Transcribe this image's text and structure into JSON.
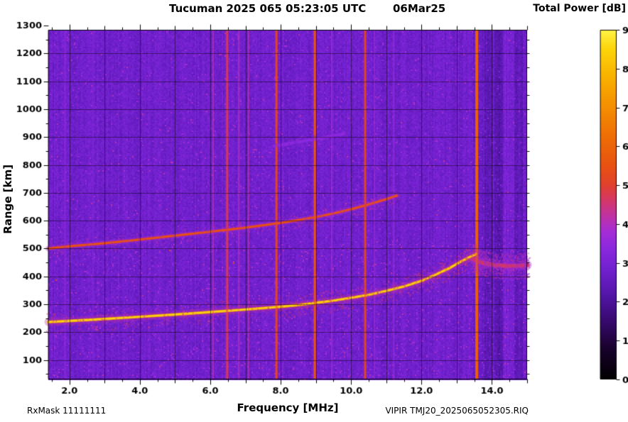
{
  "chart_data": {
    "type": "heatmap",
    "title": "Tucuman 2025 065 05:23:05 UTC",
    "date_label": "06Mar25",
    "colorbar_label": "Total Power [dB]",
    "xlabel": "Frequency [MHz]",
    "ylabel": "Range [km]",
    "footer_left": "RxMask 11111111",
    "footer_right": "VIPIR  TMJ20_2025065052305.RIQ",
    "x_axis": {
      "min": 1.4,
      "max": 15.0,
      "tick_values": [
        2,
        4,
        6,
        8,
        10,
        12,
        14
      ],
      "tick_labels": [
        "2.0",
        "4.0",
        "6.0",
        "8.0",
        "10.0",
        "12.0",
        "14.0"
      ],
      "minor_step": 0.5,
      "grid_step": 1.0
    },
    "y_axis": {
      "min": 30,
      "max": 1285,
      "tick_values": [
        100,
        200,
        300,
        400,
        500,
        600,
        700,
        800,
        900,
        1000,
        1100,
        1200,
        1300
      ],
      "tick_labels": [
        "100",
        "200",
        "300",
        "400",
        "500",
        "600",
        "700",
        "800",
        "900",
        "1000",
        "1100",
        "1200",
        "1300"
      ],
      "minor_step": 50,
      "grid_step": 100
    },
    "colorbar": {
      "min": 0,
      "max": 90,
      "tick_values": [
        0,
        10,
        20,
        30,
        40,
        50,
        60,
        70,
        80,
        90
      ],
      "tick_labels": [
        "0",
        "10",
        "20",
        "30",
        "40",
        "50",
        "60",
        "70",
        "80",
        "90"
      ]
    },
    "colormap_stops": [
      [
        0,
        0,
        0,
        0
      ],
      [
        8,
        25,
        2,
        45
      ],
      [
        15,
        55,
        10,
        110
      ],
      [
        22,
        85,
        22,
        170
      ],
      [
        28,
        112,
        32,
        205
      ],
      [
        33,
        135,
        40,
        222
      ],
      [
        38,
        165,
        45,
        215
      ],
      [
        42,
        192,
        50,
        165
      ],
      [
        46,
        212,
        55,
        105
      ],
      [
        50,
        224,
        64,
        45
      ],
      [
        55,
        232,
        82,
        18
      ],
      [
        62,
        238,
        108,
        6
      ],
      [
        70,
        244,
        142,
        2
      ],
      [
        78,
        249,
        178,
        0
      ],
      [
        85,
        252,
        212,
        10
      ],
      [
        90,
        255,
        244,
        70
      ]
    ],
    "background_db": 28,
    "rfi_lines": [
      {
        "freq": 1.88,
        "width": 3,
        "db": 34,
        "alpha": 0.5
      },
      {
        "freq": 2.67,
        "width": 2,
        "db": 33,
        "alpha": 0.5
      },
      {
        "freq": 4.15,
        "width": 2,
        "db": 32,
        "alpha": 0.4
      },
      {
        "freq": 6.08,
        "width": 2,
        "db": 40,
        "alpha": 0.7
      },
      {
        "freq": 6.48,
        "width": 3,
        "db": 46,
        "alpha": 0.85
      },
      {
        "freq": 6.81,
        "width": 2,
        "db": 40,
        "alpha": 0.6
      },
      {
        "freq": 7.09,
        "width": 2,
        "db": 42,
        "alpha": 0.6
      },
      {
        "freq": 7.88,
        "width": 3,
        "db": 50,
        "alpha": 0.9
      },
      {
        "freq": 8.97,
        "width": 3,
        "db": 54,
        "alpha": 0.95
      },
      {
        "freq": 9.45,
        "width": 2,
        "db": 38,
        "alpha": 0.5
      },
      {
        "freq": 10.4,
        "width": 3,
        "db": 50,
        "alpha": 0.9
      },
      {
        "freq": 10.66,
        "width": 2,
        "db": 36,
        "alpha": 0.5
      },
      {
        "freq": 11.21,
        "width": 2,
        "db": 36,
        "alpha": 0.5
      },
      {
        "freq": 13.57,
        "width": 4,
        "db": 57,
        "alpha": 1.0
      }
    ],
    "shade_bands": [
      {
        "from": 2.05,
        "to": 2.2,
        "delta": -2
      },
      {
        "from": 13.62,
        "to": 13.75,
        "delta": -2
      },
      {
        "from": 13.75,
        "to": 14.0,
        "delta": -4
      },
      {
        "from": 14.05,
        "to": 14.3,
        "delta": -5
      },
      {
        "from": 14.35,
        "to": 14.55,
        "delta": 2
      },
      {
        "from": 14.6,
        "to": 14.85,
        "delta": -3
      }
    ],
    "traces": [
      {
        "name": "faint high echo",
        "db": 33,
        "core_db": 34,
        "width_km": 10,
        "halo_db": 31,
        "halo_km": 16,
        "speckle": 150,
        "fuzz_km": 20,
        "points": [
          [
            7.8,
            868
          ],
          [
            8.5,
            882
          ],
          [
            9.2,
            898
          ],
          [
            9.8,
            912
          ]
        ]
      },
      {
        "name": "second-hop echo",
        "db": 52,
        "core_db": 56,
        "width_km": 9,
        "halo_db": 38,
        "halo_km": 20,
        "speckle": 500,
        "fuzz_km": 28,
        "points": [
          [
            1.4,
            500
          ],
          [
            2,
            508
          ],
          [
            3,
            519
          ],
          [
            4,
            532
          ],
          [
            5,
            546
          ],
          [
            6,
            560
          ],
          [
            7,
            575
          ],
          [
            8,
            592
          ],
          [
            8.5,
            602
          ],
          [
            9,
            613
          ],
          [
            9.5,
            626
          ],
          [
            10,
            641
          ],
          [
            10.5,
            658
          ],
          [
            11,
            677
          ],
          [
            11.3,
            690
          ]
        ]
      },
      {
        "name": "post-cusp band",
        "db": 45,
        "core_db": 47,
        "width_km": 16,
        "halo_db": 37,
        "halo_km": 34,
        "speckle": 800,
        "fuzz_km": 45,
        "points": [
          [
            13.45,
            462
          ],
          [
            13.7,
            450
          ],
          [
            14.0,
            442
          ],
          [
            14.3,
            438
          ],
          [
            14.7,
            437
          ],
          [
            15.0,
            441
          ]
        ]
      },
      {
        "name": "F-region echo",
        "db": 76,
        "core_db": 86,
        "width_km": 10,
        "halo_db": 42,
        "halo_km": 28,
        "speckle": 900,
        "fuzz_km": 40,
        "points": [
          [
            1.4,
            236
          ],
          [
            2,
            240
          ],
          [
            3,
            247
          ],
          [
            4,
            255
          ],
          [
            5,
            263
          ],
          [
            6,
            272
          ],
          [
            7,
            281
          ],
          [
            8,
            291
          ],
          [
            8.5,
            297
          ],
          [
            9,
            305
          ],
          [
            9.5,
            313
          ],
          [
            10,
            323
          ],
          [
            10.5,
            334
          ],
          [
            11,
            348
          ],
          [
            11.5,
            364
          ],
          [
            12,
            384
          ],
          [
            12.4,
            406
          ],
          [
            12.8,
            430
          ],
          [
            13.1,
            452
          ],
          [
            13.35,
            468
          ],
          [
            13.55,
            480
          ]
        ]
      }
    ]
  }
}
